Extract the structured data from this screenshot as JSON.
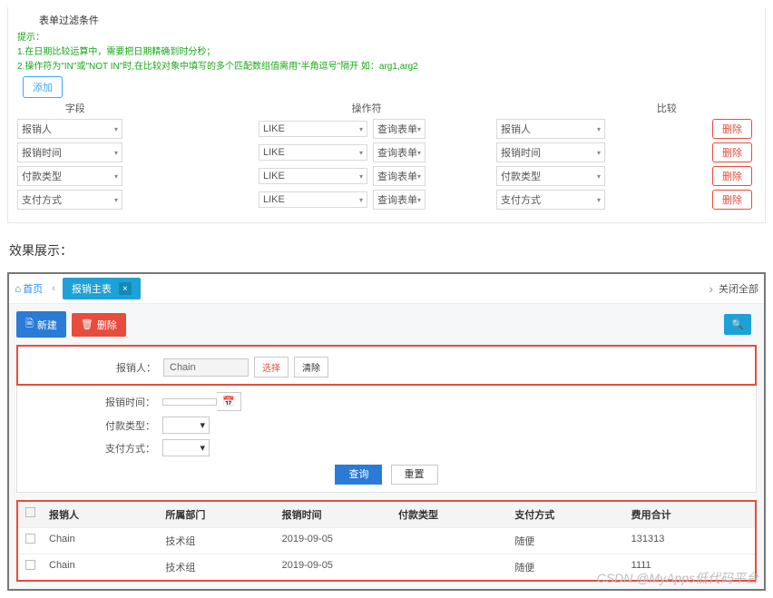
{
  "panel1": {
    "title": "表单过滤条件",
    "hint_label": "提示：",
    "hint1": "1.在日期比较运算中，需要把日期精确到时分秒；",
    "hint2": "2.操作符为\"IN\"或\"NOT IN\"时,在比较对象中填写的多个匹配数组值需用\"半角逗号\"隔开 如：arg1,arg2",
    "add_btn": "添加",
    "headers": {
      "field": "字段",
      "op": "操作符",
      "cmp": "比较"
    },
    "rows": [
      {
        "field": "报销人",
        "op": "LIKE",
        "state": "查询表单",
        "cmp": "报销人"
      },
      {
        "field": "报销时间",
        "op": "LIKE",
        "state": "查询表单",
        "cmp": "报销时间"
      },
      {
        "field": "付款类型",
        "op": "LIKE",
        "state": "查询表单",
        "cmp": "付款类型"
      },
      {
        "field": "支付方式",
        "op": "LIKE",
        "state": "查询表单",
        "cmp": "支付方式"
      }
    ],
    "del_btn": "删除"
  },
  "result_label": "效果展示：",
  "app": {
    "tabs": {
      "home": "首页",
      "active": "报销主表",
      "close_all": "关闭全部"
    },
    "toolbar": {
      "new": "新建",
      "del": "删除"
    },
    "form": {
      "user_label": "报销人：",
      "user_value": "Chain",
      "pick": "选择",
      "clear": "清除",
      "time_label": "报销时间：",
      "type_label": "付款类型：",
      "pay_label": "支付方式：",
      "query": "查询",
      "reset": "重置"
    },
    "table": {
      "headers": [
        "报销人",
        "所属部门",
        "报销时间",
        "付款类型",
        "支付方式",
        "费用合计"
      ],
      "rows": [
        [
          "Chain",
          "技术组",
          "2019-09-05",
          "",
          "随便",
          "131313"
        ],
        [
          "Chain",
          "技术组",
          "2019-09-05",
          "",
          "随便",
          "1111"
        ]
      ]
    },
    "watermark": "CSDN @MyApps低代码平台"
  }
}
